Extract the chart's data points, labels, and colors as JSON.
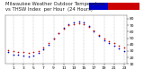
{
  "title": "Milwaukee Weather Outdoor Temperature vs THSW Index per Hour (24 Hours)",
  "title_line1": "Milwaukee Weather Outdoor Temperature",
  "title_line2": "vs THSW Index",
  "hours": [
    0,
    1,
    2,
    3,
    4,
    5,
    6,
    7,
    8,
    9,
    10,
    11,
    12,
    13,
    14,
    15,
    16,
    17,
    18,
    19,
    20,
    21,
    22,
    23
  ],
  "temp": [
    32,
    30,
    29,
    28,
    27,
    28,
    30,
    35,
    42,
    50,
    58,
    65,
    70,
    72,
    73,
    71,
    68,
    62,
    55,
    50,
    45,
    42,
    38,
    35
  ],
  "thsw": [
    28,
    25,
    24,
    23,
    22,
    23,
    27,
    33,
    40,
    49,
    58,
    66,
    72,
    75,
    76,
    74,
    69,
    61,
    53,
    47,
    42,
    38,
    34,
    30
  ],
  "temp_color": "#cc0000",
  "thsw_color": "#0000cc",
  "bg_color": "#ffffff",
  "grid_color": "#888888",
  "ylim": [
    10,
    85
  ],
  "yticks": [
    10,
    20,
    30,
    40,
    50,
    60,
    70,
    80
  ],
  "xlim": [
    -0.5,
    23.5
  ],
  "xticks": [
    1,
    3,
    5,
    7,
    9,
    11,
    13,
    15,
    17,
    19,
    21,
    23
  ],
  "xtick_labels": [
    "1",
    "3",
    "5",
    "7",
    "9",
    "11",
    "13",
    "15",
    "17",
    "19",
    "21",
    "23"
  ],
  "grid_positions": [
    1,
    3,
    5,
    7,
    9,
    11,
    13,
    15,
    17,
    19,
    21,
    23
  ],
  "marker_size": 1.5,
  "title_fontsize": 3.8,
  "tick_fontsize": 3.2,
  "legend_thsw_color": "#0000cc",
  "legend_temp_color": "#cc0000"
}
